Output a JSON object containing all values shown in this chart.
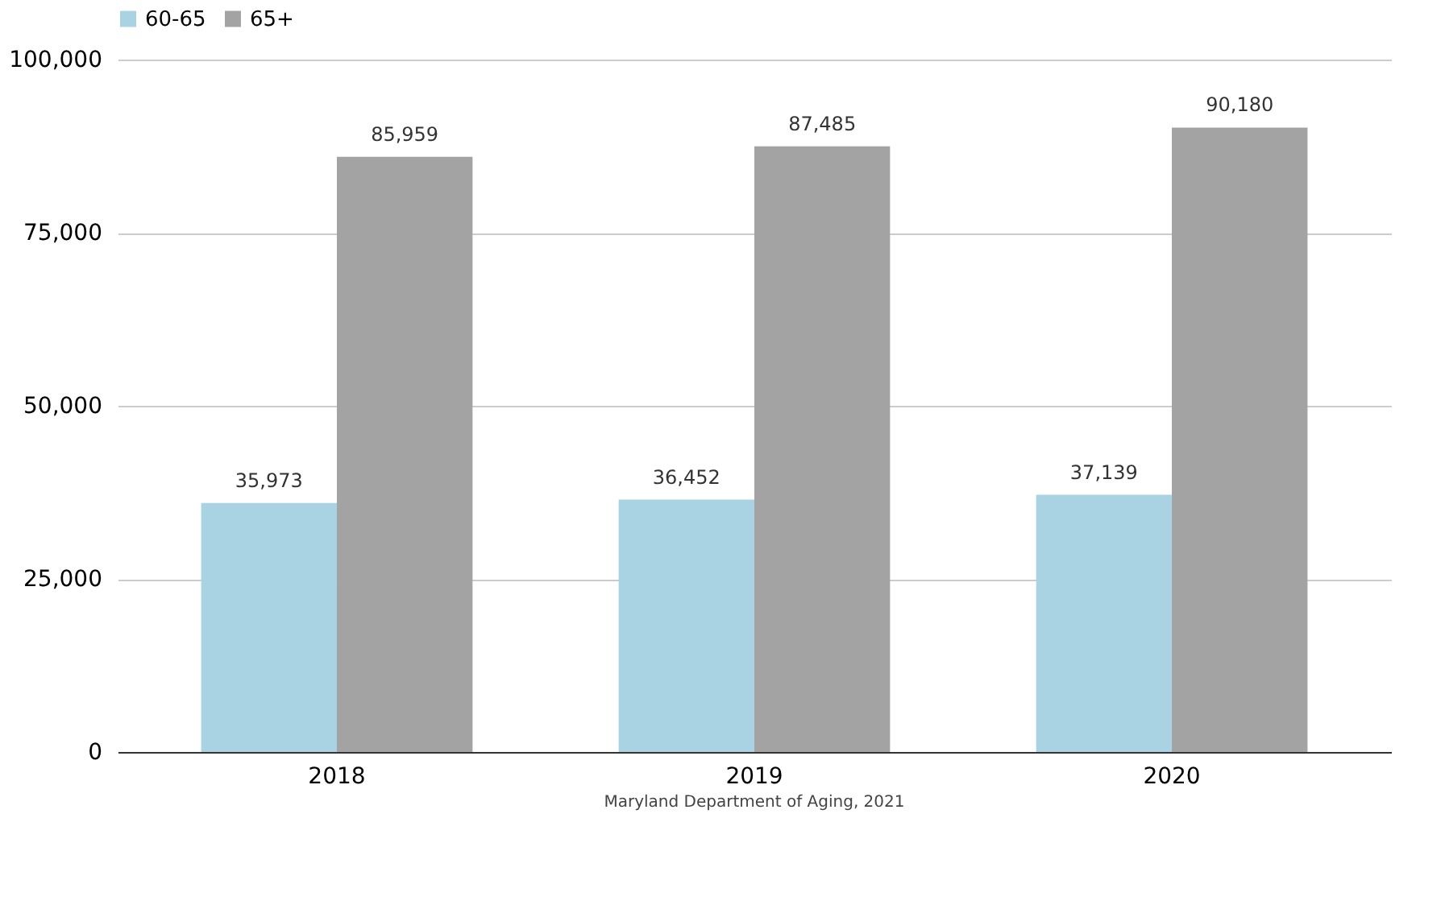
{
  "chart_data": {
    "type": "bar",
    "categories": [
      "2018",
      "2019",
      "2020"
    ],
    "series": [
      {
        "name": "60-65",
        "color": "#a9d3e3",
        "values": [
          35973,
          36452,
          37139
        ],
        "value_labels": [
          "35,973",
          "36,452",
          "37,139"
        ]
      },
      {
        "name": "65+",
        "color": "#a3a3a3",
        "values": [
          85959,
          87485,
          90180
        ],
        "value_labels": [
          "85,959",
          "87,485",
          "90,180"
        ]
      }
    ],
    "ylim": [
      0,
      100000
    ],
    "yticks": [
      0,
      {
        "value": 25000,
        "label": "25,000"
      },
      {
        "value": 50000,
        "label": "50,000"
      },
      {
        "value": 75000,
        "label": "75,000"
      },
      {
        "value": 100000,
        "label": "100,000"
      }
    ],
    "grid": "y",
    "legend": "top",
    "annotations": [
      "Maryland Department of Aging, 2021"
    ]
  }
}
